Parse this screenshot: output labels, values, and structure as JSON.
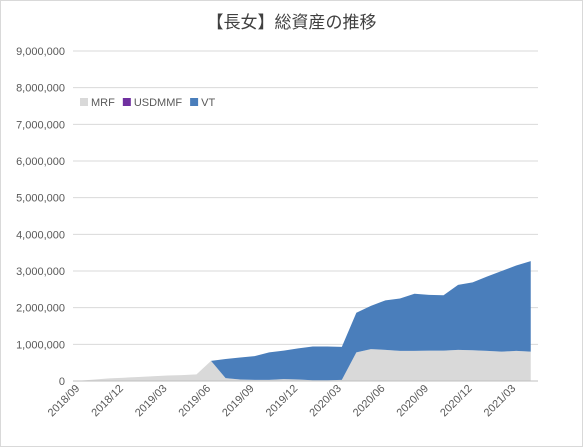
{
  "chart_data": {
    "type": "area",
    "stacked": true,
    "title": "【長女】総資産の推移",
    "x": [
      "2018/09",
      "2018/10",
      "2018/11",
      "2018/12",
      "2019/01",
      "2019/02",
      "2019/03",
      "2019/04",
      "2019/05",
      "2019/06",
      "2019/07",
      "2019/08",
      "2019/09",
      "2019/10",
      "2019/11",
      "2019/12",
      "2020/01",
      "2020/02",
      "2020/03",
      "2020/04",
      "2020/05",
      "2020/06",
      "2020/07",
      "2020/08",
      "2020/09",
      "2020/10",
      "2020/11",
      "2020/12",
      "2021/01",
      "2021/02",
      "2021/03",
      "2021/04"
    ],
    "x_tick_labels": [
      "2018/09",
      "2018/12",
      "2019/03",
      "2019/06",
      "2019/09",
      "2019/12",
      "2020/03",
      "2020/06",
      "2020/09",
      "2020/12",
      "2021/03"
    ],
    "series": [
      {
        "name": "MRF",
        "color": "#d9d9d9",
        "values": [
          10000,
          40000,
          70000,
          90000,
          110000,
          130000,
          150000,
          160000,
          180000,
          550000,
          80000,
          40000,
          30000,
          30000,
          50000,
          40000,
          20000,
          20000,
          30000,
          780000,
          870000,
          850000,
          820000,
          820000,
          830000,
          830000,
          850000,
          840000,
          820000,
          800000,
          820000,
          800000
        ]
      },
      {
        "name": "USDMMF",
        "color": "#7030a0",
        "values": [
          0,
          0,
          0,
          0,
          0,
          0,
          0,
          0,
          0,
          0,
          0,
          0,
          0,
          0,
          0,
          0,
          0,
          0,
          0,
          0,
          0,
          0,
          0,
          0,
          0,
          0,
          0,
          0,
          0,
          0,
          0,
          0
        ]
      },
      {
        "name": "VT",
        "color": "#4a7ebb",
        "values": [
          0,
          0,
          0,
          0,
          0,
          0,
          0,
          0,
          0,
          0,
          520000,
          600000,
          650000,
          750000,
          780000,
          850000,
          920000,
          920000,
          900000,
          1080000,
          1180000,
          1350000,
          1430000,
          1560000,
          1520000,
          1510000,
          1770000,
          1850000,
          2030000,
          2200000,
          2330000,
          2470000
        ]
      }
    ],
    "ylim": [
      0,
      9000000
    ],
    "y_ticks": [
      "0",
      "1,000,000",
      "2,000,000",
      "3,000,000",
      "4,000,000",
      "5,000,000",
      "6,000,000",
      "7,000,000",
      "8,000,000",
      "9,000,000"
    ],
    "grid": true,
    "legend": {
      "position": "top-left",
      "entries": [
        "MRF",
        "USDMMF",
        "VT"
      ]
    }
  }
}
